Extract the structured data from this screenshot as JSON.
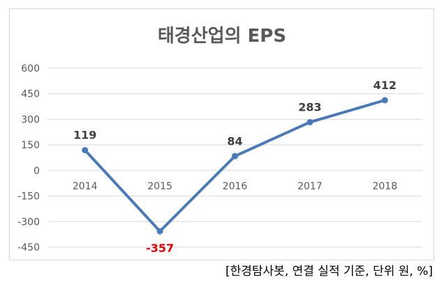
{
  "chart_data": {
    "type": "line",
    "title": "태경산업의 EPS",
    "categories": [
      "2014",
      "2015",
      "2016",
      "2017",
      "2018"
    ],
    "series": [
      {
        "values": [
          119,
          -357,
          84,
          283,
          412
        ]
      }
    ],
    "ylim": [
      -450,
      600
    ],
    "yticks": [
      "600",
      "450",
      "300",
      "150",
      "0",
      "-150",
      "-300",
      "-450"
    ],
    "data_labels": [
      "119",
      "-357",
      "84",
      "283",
      "412"
    ],
    "grid": true,
    "legend": "none",
    "colors": {
      "line": "#4a7ab7",
      "negative_label": "#e00000",
      "label": "#404040",
      "grid": "#d9d9d9"
    }
  },
  "footnote": "[한경탐사봇, 연결 실적 기준, 단위 원, %]"
}
